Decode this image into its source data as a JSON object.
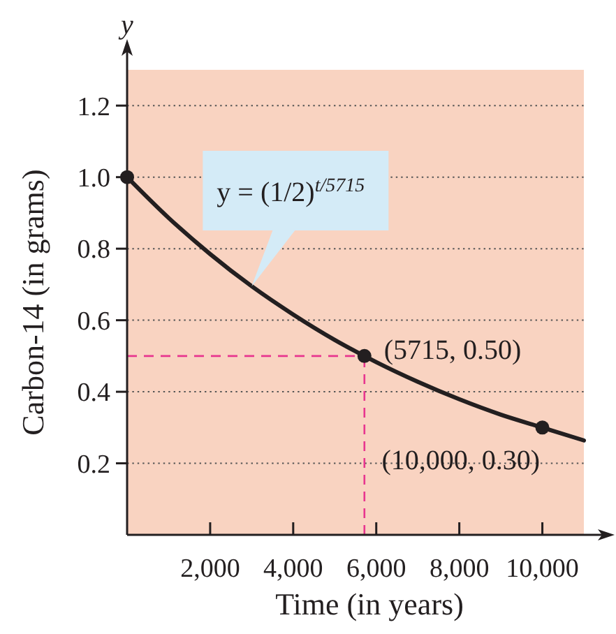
{
  "chart_data": {
    "type": "line",
    "xlabel": "Time (in years)",
    "ylabel": "Carbon-14 (in grams)",
    "xlim": [
      0,
      11000
    ],
    "ylim": [
      0,
      1.3
    ],
    "xticks": [
      {
        "value": 2000,
        "label": "2,000"
      },
      {
        "value": 4000,
        "label": "4,000"
      },
      {
        "value": 6000,
        "label": "6,000"
      },
      {
        "value": 8000,
        "label": "8,000"
      },
      {
        "value": 10000,
        "label": "10,000"
      }
    ],
    "yticks": [
      0.2,
      0.4,
      0.6,
      0.8,
      {
        "value": 1,
        "label": "1.0"
      },
      1.2
    ],
    "grid": "y",
    "series": [
      {
        "color": "#231f20",
        "line_style": "solid",
        "x": [
          0,
          1000,
          2000,
          3000,
          4000,
          5000,
          5715,
          6000,
          7000,
          8000,
          9000,
          10000,
          11000
        ],
        "values": [
          1,
          0.886,
          0.785,
          0.695,
          0.616,
          0.545,
          0.5,
          0.483,
          0.428,
          0.379,
          0.336,
          0.3,
          0.264
        ]
      },
      {
        "type": "scatter",
        "color": "#231f20",
        "marker": "circle",
        "x": [
          0,
          5715,
          10000
        ],
        "values": [
          1,
          0.5,
          0.3
        ]
      }
    ],
    "ref_lines": [
      {
        "axis": "x",
        "value": 5715,
        "color": "#e8368f",
        "line_style": "dashed"
      },
      {
        "axis": "y",
        "value": 0.5,
        "color": "#e8368f",
        "line_style": "dashed"
      }
    ],
    "annotations": [
      "y",
      {
        "text": "y = (1/2)$^{t/5715}$",
        "x": 3000,
        "y": 0.695
      },
      {
        "text": "(5715, 0.50)",
        "x": 5715,
        "y": 0.5
      },
      {
        "text": "(10,000, 0.30)",
        "x": 10000,
        "y": 0.3
      }
    ]
  }
}
